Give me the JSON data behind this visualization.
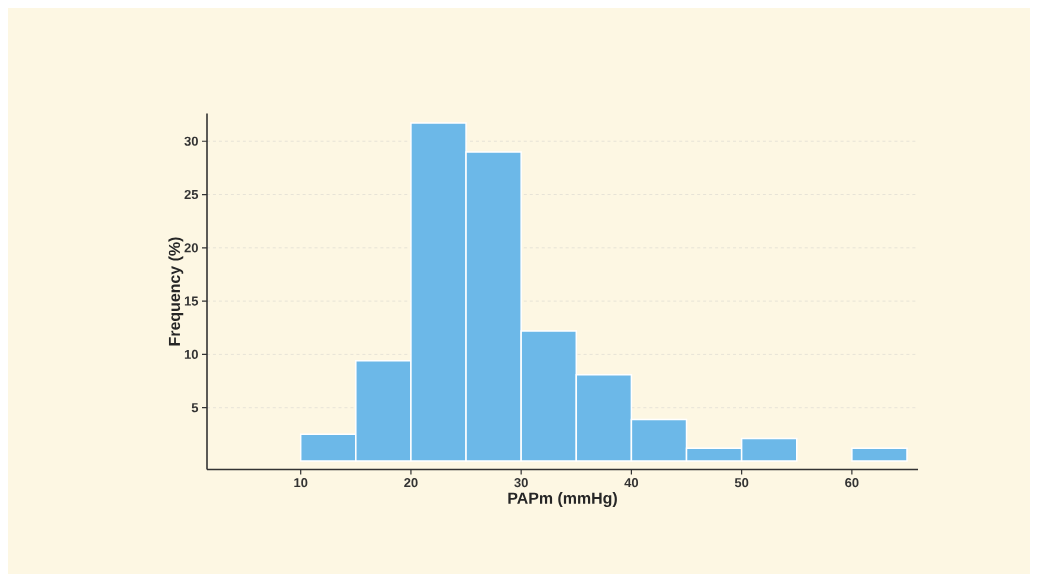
{
  "chart_data": {
    "type": "histogram",
    "xlabel": "PAPm (mmHg)",
    "ylabel": "Frequency (%)",
    "bins": [
      10,
      15,
      20,
      25,
      30,
      35,
      40,
      45,
      50,
      55,
      60,
      65
    ],
    "values": [
      2.5,
      9.4,
      31.7,
      29.0,
      12.2,
      8.1,
      3.9,
      1.2,
      2.1,
      0,
      1.2
    ],
    "color": "#6cb8e8",
    "xlim": [
      1.5,
      66
    ],
    "ylim": [
      -0.8,
      32.6
    ],
    "xticks": [
      10,
      20,
      30,
      40,
      50,
      60
    ],
    "yticks": [
      5,
      10,
      15,
      20,
      25,
      30
    ],
    "grid": "y"
  }
}
